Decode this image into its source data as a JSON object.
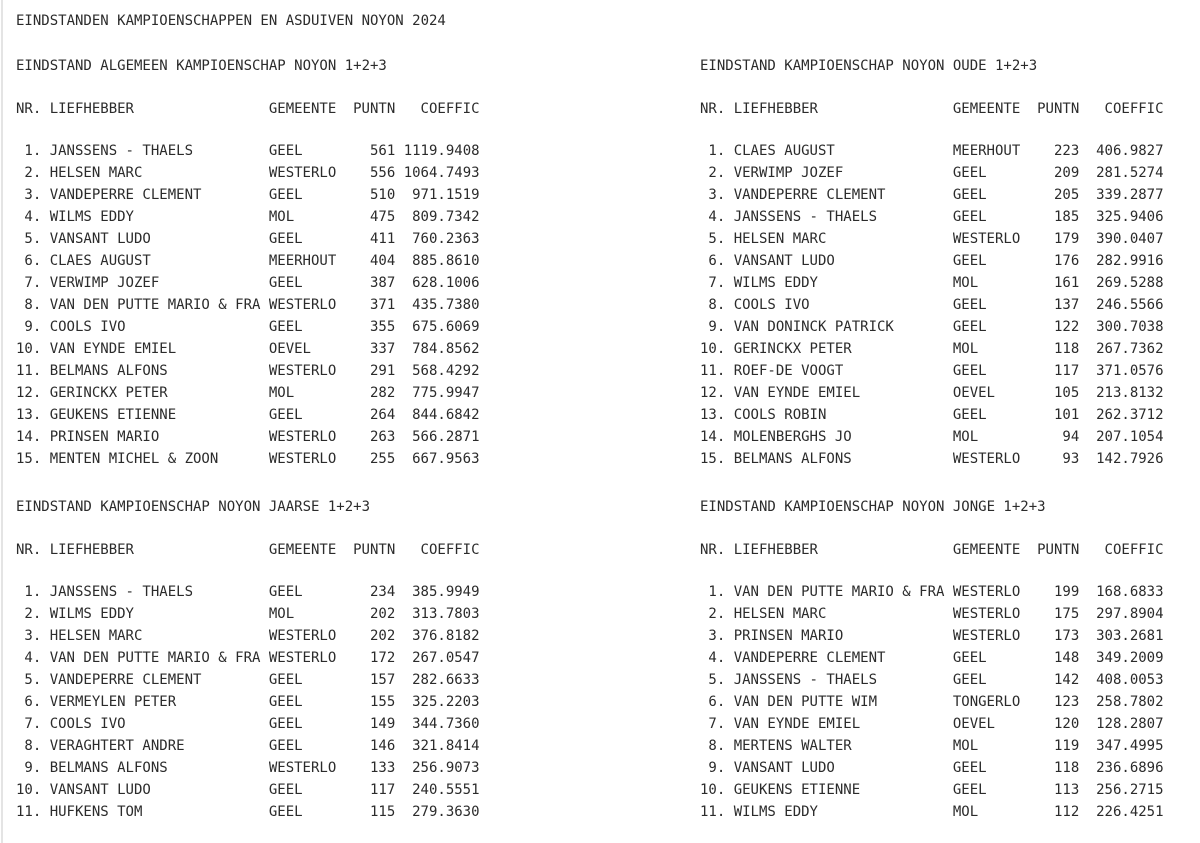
{
  "page": {
    "title": "EINDSTANDEN KAMPIOENSCHAPPEN EN ASDUIVEN NOYON 2024"
  },
  "columns": {
    "nr": "NR.",
    "name": "LIEFHEBBER",
    "gemeente": "GEMEENTE",
    "puntn": "PUNTN",
    "coeffic": "COEFFIC"
  },
  "tables": [
    {
      "title": "EINDSTAND ALGEMEEN KAMPIOENSCHAP NOYON 1+2+3",
      "rows": [
        {
          "rank": "1.",
          "name": "JANSSENS - THAELS",
          "gemeente": "GEEL",
          "puntn": "561",
          "coeffic": "1119.9408"
        },
        {
          "rank": "2.",
          "name": "HELSEN MARC",
          "gemeente": "WESTERLO",
          "puntn": "556",
          "coeffic": "1064.7493"
        },
        {
          "rank": "3.",
          "name": "VANDEPERRE CLEMENT",
          "gemeente": "GEEL",
          "puntn": "510",
          "coeffic": "971.1519"
        },
        {
          "rank": "4.",
          "name": "WILMS EDDY",
          "gemeente": "MOL",
          "puntn": "475",
          "coeffic": "809.7342"
        },
        {
          "rank": "5.",
          "name": "VANSANT LUDO",
          "gemeente": "GEEL",
          "puntn": "411",
          "coeffic": "760.2363"
        },
        {
          "rank": "6.",
          "name": "CLAES AUGUST",
          "gemeente": "MEERHOUT",
          "puntn": "404",
          "coeffic": "885.8610"
        },
        {
          "rank": "7.",
          "name": "VERWIMP JOZEF",
          "gemeente": "GEEL",
          "puntn": "387",
          "coeffic": "628.1006"
        },
        {
          "rank": "8.",
          "name": "VAN DEN PUTTE MARIO & FRA",
          "gemeente": "WESTERLO",
          "puntn": "371",
          "coeffic": "435.7380"
        },
        {
          "rank": "9.",
          "name": "COOLS IVO",
          "gemeente": "GEEL",
          "puntn": "355",
          "coeffic": "675.6069"
        },
        {
          "rank": "10.",
          "name": "VAN EYNDE EMIEL",
          "gemeente": "OEVEL",
          "puntn": "337",
          "coeffic": "784.8562"
        },
        {
          "rank": "11.",
          "name": "BELMANS ALFONS",
          "gemeente": "WESTERLO",
          "puntn": "291",
          "coeffic": "568.4292"
        },
        {
          "rank": "12.",
          "name": "GERINCKX PETER",
          "gemeente": "MOL",
          "puntn": "282",
          "coeffic": "775.9947"
        },
        {
          "rank": "13.",
          "name": "GEUKENS ETIENNE",
          "gemeente": "GEEL",
          "puntn": "264",
          "coeffic": "844.6842"
        },
        {
          "rank": "14.",
          "name": "PRINSEN MARIO",
          "gemeente": "WESTERLO",
          "puntn": "263",
          "coeffic": "566.2871"
        },
        {
          "rank": "15.",
          "name": "MENTEN MICHEL & ZOON",
          "gemeente": "WESTERLO",
          "puntn": "255",
          "coeffic": "667.9563"
        }
      ]
    },
    {
      "title": "EINDSTAND KAMPIOENSCHAP NOYON OUDE 1+2+3",
      "rows": [
        {
          "rank": "1.",
          "name": "CLAES AUGUST",
          "gemeente": "MEERHOUT",
          "puntn": "223",
          "coeffic": "406.9827"
        },
        {
          "rank": "2.",
          "name": "VERWIMP JOZEF",
          "gemeente": "GEEL",
          "puntn": "209",
          "coeffic": "281.5274"
        },
        {
          "rank": "3.",
          "name": "VANDEPERRE CLEMENT",
          "gemeente": "GEEL",
          "puntn": "205",
          "coeffic": "339.2877"
        },
        {
          "rank": "4.",
          "name": "JANSSENS - THAELS",
          "gemeente": "GEEL",
          "puntn": "185",
          "coeffic": "325.9406"
        },
        {
          "rank": "5.",
          "name": "HELSEN MARC",
          "gemeente": "WESTERLO",
          "puntn": "179",
          "coeffic": "390.0407"
        },
        {
          "rank": "6.",
          "name": "VANSANT LUDO",
          "gemeente": "GEEL",
          "puntn": "176",
          "coeffic": "282.9916"
        },
        {
          "rank": "7.",
          "name": "WILMS EDDY",
          "gemeente": "MOL",
          "puntn": "161",
          "coeffic": "269.5288"
        },
        {
          "rank": "8.",
          "name": "COOLS IVO",
          "gemeente": "GEEL",
          "puntn": "137",
          "coeffic": "246.5566"
        },
        {
          "rank": "9.",
          "name": "VAN DONINCK PATRICK",
          "gemeente": "GEEL",
          "puntn": "122",
          "coeffic": "300.7038"
        },
        {
          "rank": "10.",
          "name": "GERINCKX PETER",
          "gemeente": "MOL",
          "puntn": "118",
          "coeffic": "267.7362"
        },
        {
          "rank": "11.",
          "name": "ROEF-DE VOOGT",
          "gemeente": "GEEL",
          "puntn": "117",
          "coeffic": "371.0576"
        },
        {
          "rank": "12.",
          "name": "VAN EYNDE EMIEL",
          "gemeente": "OEVEL",
          "puntn": "105",
          "coeffic": "213.8132"
        },
        {
          "rank": "13.",
          "name": "COOLS ROBIN",
          "gemeente": "GEEL",
          "puntn": "101",
          "coeffic": "262.3712"
        },
        {
          "rank": "14.",
          "name": "MOLENBERGHS JO",
          "gemeente": "MOL",
          "puntn": "94",
          "coeffic": "207.1054"
        },
        {
          "rank": "15.",
          "name": "BELMANS ALFONS",
          "gemeente": "WESTERLO",
          "puntn": "93",
          "coeffic": "142.7926"
        }
      ]
    },
    {
      "title": "EINDSTAND KAMPIOENSCHAP NOYON JAARSE 1+2+3",
      "rows": [
        {
          "rank": "1.",
          "name": "JANSSENS - THAELS",
          "gemeente": "GEEL",
          "puntn": "234",
          "coeffic": "385.9949"
        },
        {
          "rank": "2.",
          "name": "WILMS EDDY",
          "gemeente": "MOL",
          "puntn": "202",
          "coeffic": "313.7803"
        },
        {
          "rank": "3.",
          "name": "HELSEN MARC",
          "gemeente": "WESTERLO",
          "puntn": "202",
          "coeffic": "376.8182"
        },
        {
          "rank": "4.",
          "name": "VAN DEN PUTTE MARIO & FRA",
          "gemeente": "WESTERLO",
          "puntn": "172",
          "coeffic": "267.0547"
        },
        {
          "rank": "5.",
          "name": "VANDEPERRE CLEMENT",
          "gemeente": "GEEL",
          "puntn": "157",
          "coeffic": "282.6633"
        },
        {
          "rank": "6.",
          "name": "VERMEYLEN PETER",
          "gemeente": "GEEL",
          "puntn": "155",
          "coeffic": "325.2203"
        },
        {
          "rank": "7.",
          "name": "COOLS IVO",
          "gemeente": "GEEL",
          "puntn": "149",
          "coeffic": "344.7360"
        },
        {
          "rank": "8.",
          "name": "VERAGHTERT ANDRE",
          "gemeente": "GEEL",
          "puntn": "146",
          "coeffic": "321.8414"
        },
        {
          "rank": "9.",
          "name": "BELMANS ALFONS",
          "gemeente": "WESTERLO",
          "puntn": "133",
          "coeffic": "256.9073"
        },
        {
          "rank": "10.",
          "name": "VANSANT LUDO",
          "gemeente": "GEEL",
          "puntn": "117",
          "coeffic": "240.5551"
        },
        {
          "rank": "11.",
          "name": "HUFKENS TOM",
          "gemeente": "GEEL",
          "puntn": "115",
          "coeffic": "279.3630"
        }
      ]
    },
    {
      "title": "EINDSTAND KAMPIOENSCHAP NOYON JONGE 1+2+3",
      "rows": [
        {
          "rank": "1.",
          "name": "VAN DEN PUTTE MARIO & FRA",
          "gemeente": "WESTERLO",
          "puntn": "199",
          "coeffic": "168.6833"
        },
        {
          "rank": "2.",
          "name": "HELSEN MARC",
          "gemeente": "WESTERLO",
          "puntn": "175",
          "coeffic": "297.8904"
        },
        {
          "rank": "3.",
          "name": "PRINSEN MARIO",
          "gemeente": "WESTERLO",
          "puntn": "173",
          "coeffic": "303.2681"
        },
        {
          "rank": "4.",
          "name": "VANDEPERRE CLEMENT",
          "gemeente": "GEEL",
          "puntn": "148",
          "coeffic": "349.2009"
        },
        {
          "rank": "5.",
          "name": "JANSSENS - THAELS",
          "gemeente": "GEEL",
          "puntn": "142",
          "coeffic": "408.0053"
        },
        {
          "rank": "6.",
          "name": "VAN DEN PUTTE WIM",
          "gemeente": "TONGERLO",
          "puntn": "123",
          "coeffic": "258.7802"
        },
        {
          "rank": "7.",
          "name": "VAN EYNDE EMIEL",
          "gemeente": "OEVEL",
          "puntn": "120",
          "coeffic": "128.2807"
        },
        {
          "rank": "8.",
          "name": "MERTENS WALTER",
          "gemeente": "MOL",
          "puntn": "119",
          "coeffic": "347.4995"
        },
        {
          "rank": "9.",
          "name": "VANSANT LUDO",
          "gemeente": "GEEL",
          "puntn": "118",
          "coeffic": "236.6896"
        },
        {
          "rank": "10.",
          "name": "GEUKENS ETIENNE",
          "gemeente": "GEEL",
          "puntn": "113",
          "coeffic": "256.2715"
        },
        {
          "rank": "11.",
          "name": "WILMS EDDY",
          "gemeente": "MOL",
          "puntn": "112",
          "coeffic": "226.4251"
        }
      ]
    }
  ]
}
